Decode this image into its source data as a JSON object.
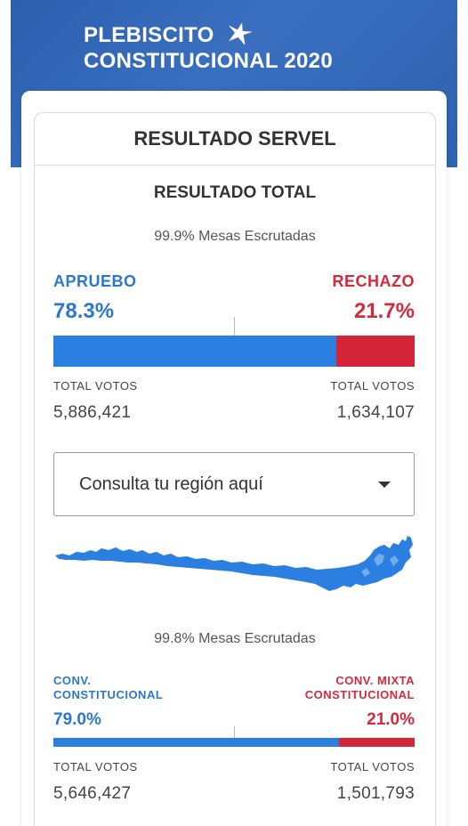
{
  "header": {
    "title_line1": "PLEBISCITO",
    "title_line2": "CONSTITUCIONAL 2020",
    "logo_icon": "star-icon"
  },
  "card": {
    "title": "RESULTADO SERVEL"
  },
  "total": {
    "subtitle": "RESULTADO TOTAL",
    "mesas": "99.9% Mesas Escrutadas",
    "left_label": "APRUEBO",
    "left_pct": "78.3%",
    "left_share": 78.3,
    "right_label": "RECHAZO",
    "right_pct": "21.7%",
    "right_share": 21.7,
    "left_votes_label": "TOTAL VOTOS",
    "left_votes": "5,886,421",
    "right_votes_label": "TOTAL VOTOS",
    "right_votes": "1,634,107"
  },
  "region_select": {
    "value": "Consulta tu región aquí",
    "icon": "caret-down-icon"
  },
  "map": {
    "icon": "chile-map-icon",
    "color": "#2b7fe0"
  },
  "convencion": {
    "mesas": "99.8% Mesas Escrutadas",
    "left_label_1": "CONV.",
    "left_label_2": "CONSTITUCIONAL",
    "left_pct": "79.0%",
    "left_share": 79.0,
    "right_label_1": "CONV. MIXTA",
    "right_label_2": "CONSTITUCIONAL",
    "right_pct": "21.0%",
    "right_share": 21.0,
    "left_votes_label": "TOTAL VOTOS",
    "left_votes": "5,646,427",
    "right_votes_label": "TOTAL VOTOS",
    "right_votes": "1,501,793"
  },
  "colors": {
    "header_blue": "#2c5fae",
    "apruebo_blue": "#2b77d2",
    "rechazo_red": "#d42a3c"
  }
}
